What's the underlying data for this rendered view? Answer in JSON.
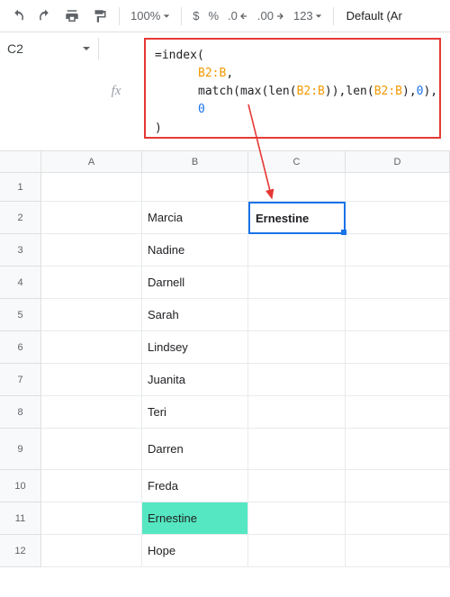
{
  "toolbar": {
    "zoom": "100%",
    "dollar": "$",
    "percent": "%",
    "dec_dec": ".0",
    "dec_inc": ".00",
    "num_format": "123",
    "font": "Default (Ar"
  },
  "namebox": "C2",
  "formula": {
    "line1_a": "=index(",
    "line2_ref": "B2:B",
    "line2_comma": ",",
    "line3_a": "match(max(len(",
    "line3_ref1": "B2:B",
    "line3_b": ")),len(",
    "line3_ref2": "B2:B",
    "line3_c": "),",
    "line3_zero": "0",
    "line3_d": "),",
    "line4_zero": "0",
    "line5": ")"
  },
  "annotation": {
    "box_color": "#e53935",
    "arrow_color": "#e53935"
  },
  "columns": [
    "A",
    "B",
    "C",
    "D"
  ],
  "rows": [
    {
      "n": "1",
      "h": "h-32",
      "B": "",
      "C": ""
    },
    {
      "n": "2",
      "h": "h-36",
      "B": "Marcia",
      "C": "Ernestine",
      "sel": true
    },
    {
      "n": "3",
      "h": "h-36",
      "B": "Nadine",
      "C": ""
    },
    {
      "n": "4",
      "h": "h-36",
      "B": "Darnell",
      "C": ""
    },
    {
      "n": "5",
      "h": "h-36",
      "B": "Sarah",
      "C": ""
    },
    {
      "n": "6",
      "h": "h-36",
      "B": "Lindsey",
      "C": ""
    },
    {
      "n": "7",
      "h": "h-36",
      "B": "Juanita",
      "C": ""
    },
    {
      "n": "8",
      "h": "h-36",
      "B": "Teri",
      "C": ""
    },
    {
      "n": "9",
      "h": "h-46",
      "B": "Darren",
      "C": ""
    },
    {
      "n": "10",
      "h": "h-36",
      "B": "Freda",
      "C": ""
    },
    {
      "n": "11",
      "h": "h-36",
      "B": "Ernestine",
      "C": "",
      "hl": true
    },
    {
      "n": "12",
      "h": "h-36",
      "B": "Hope",
      "C": ""
    }
  ],
  "colors": {
    "highlight": "#55e7c1",
    "selection": "#1a73e8"
  }
}
